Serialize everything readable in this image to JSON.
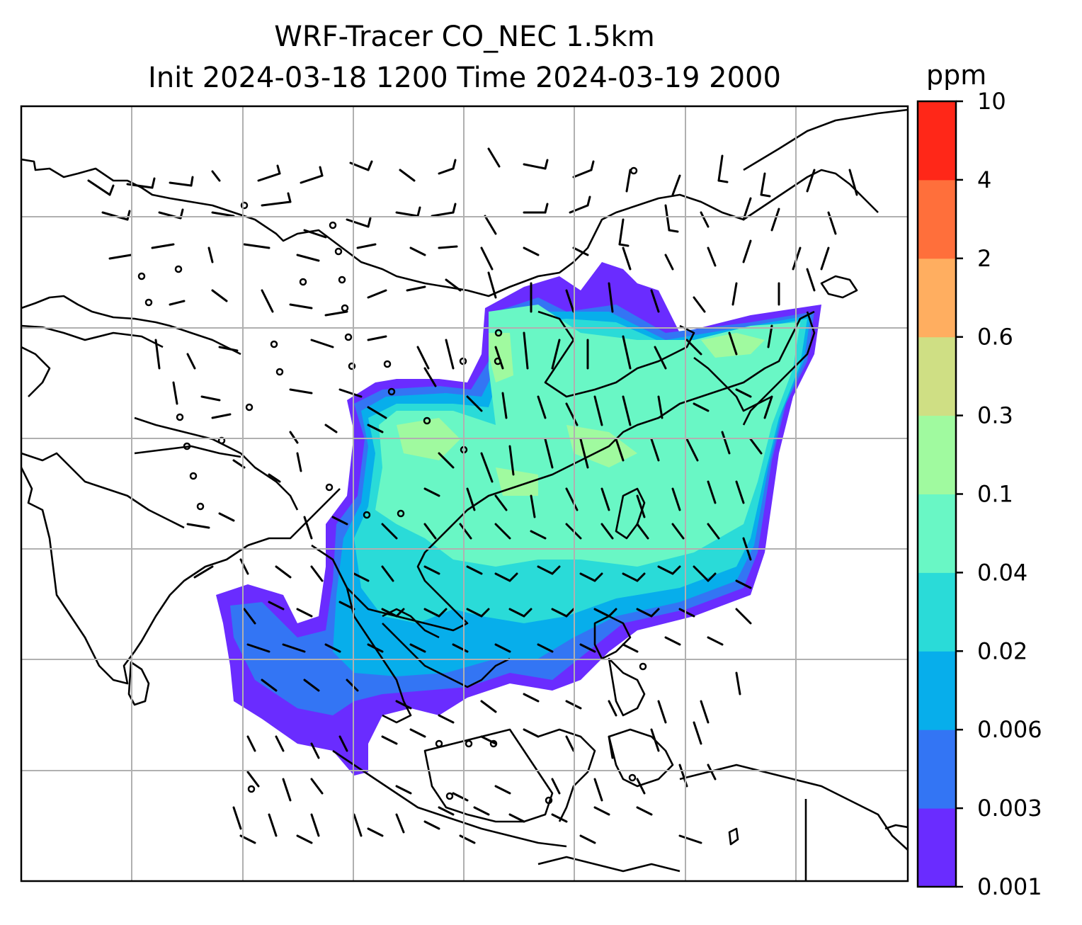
{
  "title": {
    "line1": "WRF-Tracer CO_NEC 1.5km",
    "line2": "Init 2024-03-18 1200 Time 2024-03-19 2000"
  },
  "colorbar": {
    "unit": "ppm",
    "levels": [
      "0.001",
      "0.003",
      "0.006",
      "0.02",
      "0.04",
      "0.1",
      "0.3",
      "0.6",
      "2",
      "4",
      "10"
    ],
    "colors": [
      "#6a2cff",
      "#3375f4",
      "#07aeeb",
      "#2adbd8",
      "#69f7c5",
      "#a0fa9f",
      "#cfdf84",
      "#ffae60",
      "#ff6f3b",
      "#ff2718"
    ]
  },
  "map": {
    "grid": true,
    "field": "CO tracer concentration with wind barbs",
    "region": "East and Southeast Asia"
  }
}
